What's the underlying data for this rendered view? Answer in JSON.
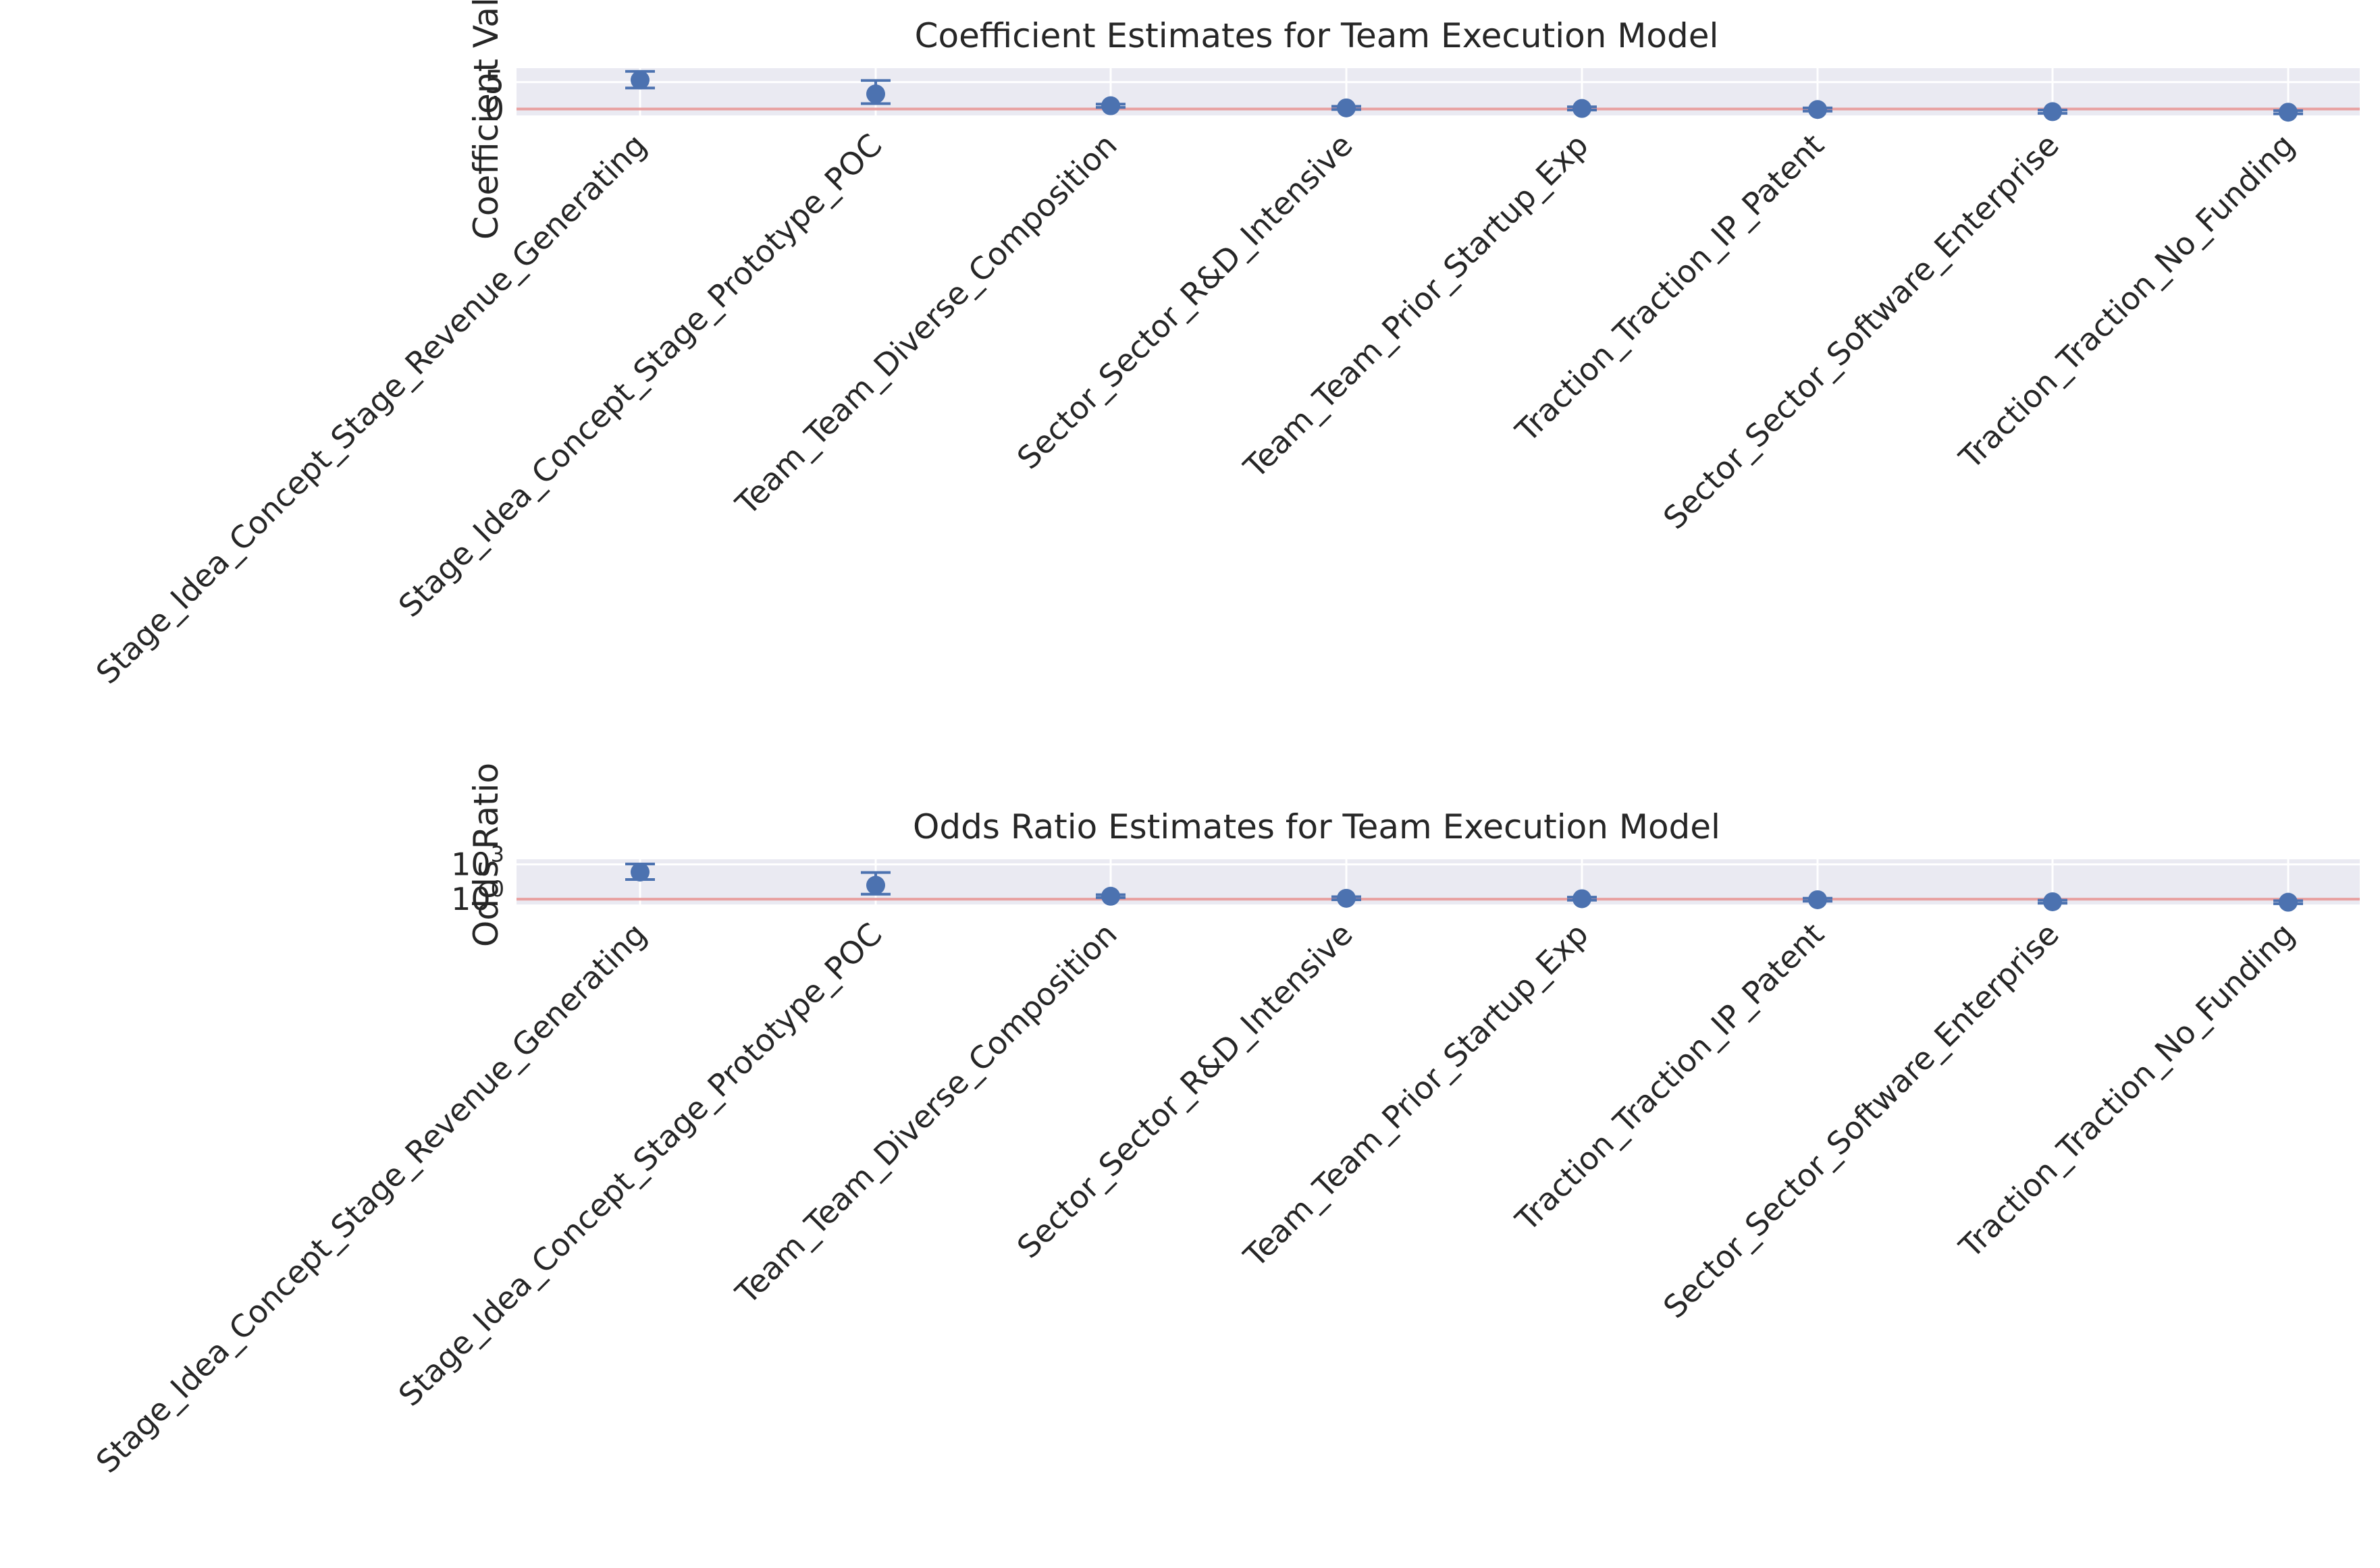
{
  "chart_data": [
    {
      "type": "scatter",
      "title": "Coefficient Estimates for Team Execution Model",
      "ylabel": "Coefficient Value",
      "yscale": "linear",
      "ylim": [
        -1.2,
        7.6
      ],
      "yticks": [
        0,
        5
      ],
      "ytick_labels": [
        "0",
        "5"
      ],
      "grid": true,
      "reference_line": {
        "y": 0,
        "color": "#e8a0a0"
      },
      "categories": [
        "Stage_Idea_Concept_Stage_Revenue_Generating",
        "Stage_Idea_Concept_Stage_Prototype_POC",
        "Team_Team_Diverse_Composition",
        "Sector_Sector_R&D_Intensive",
        "Team_Team_Prior_Startup_Exp",
        "Traction_Traction_IP_Patent",
        "Sector_Sector_Software_Enterprise",
        "Traction_Traction_No_Funding"
      ],
      "series": [
        {
          "values": [
            5.4,
            2.8,
            0.6,
            0.2,
            0.1,
            -0.1,
            -0.5,
            -0.6
          ],
          "lower": [
            3.9,
            1.0,
            0.3,
            -0.1,
            -0.2,
            -0.4,
            -0.8,
            -0.9
          ],
          "upper": [
            7.0,
            5.3,
            0.9,
            0.5,
            0.4,
            0.2,
            -0.2,
            -0.3
          ]
        }
      ],
      "color": "#4c72b0"
    },
    {
      "type": "scatter",
      "title": "Odds Ratio Estimates for Team Execution Model",
      "ylabel": "Odds Ratio",
      "yscale": "log",
      "ylim": [
        0.35,
        2800
      ],
      "yticks": [
        1,
        1000
      ],
      "ytick_labels": [
        {
          "base": "10",
          "exp": "0"
        },
        {
          "base": "10",
          "exp": "3"
        }
      ],
      "grid": true,
      "reference_line": {
        "y": 1,
        "color": "#e8a0a0"
      },
      "categories": [
        "Stage_Idea_Concept_Stage_Revenue_Generating",
        "Stage_Idea_Concept_Stage_Prototype_POC",
        "Team_Team_Diverse_Composition",
        "Sector_Sector_R&D_Intensive",
        "Team_Team_Prior_Startup_Exp",
        "Traction_Traction_IP_Patent",
        "Sector_Sector_Software_Enterprise",
        "Traction_Traction_No_Funding"
      ],
      "series": [
        {
          "values": [
            220,
            16,
            1.8,
            1.2,
            1.1,
            0.9,
            0.6,
            0.55
          ],
          "lower": [
            50,
            2.7,
            1.35,
            0.9,
            0.82,
            0.67,
            0.45,
            0.41
          ],
          "upper": [
            1100,
            200,
            2.45,
            1.65,
            1.5,
            1.22,
            0.82,
            0.74
          ]
        }
      ],
      "color": "#4c72b0"
    }
  ]
}
